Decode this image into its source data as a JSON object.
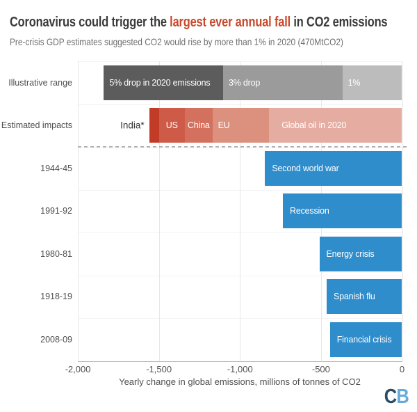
{
  "header": {
    "title_prefix": "Coronavirus could trigger the ",
    "title_highlight": "largest ever annual fall",
    "title_suffix": " in CO2 emissions",
    "subtitle": "Pre-crisis GDP estimates suggested CO2 would rise by more than 1% in 2020 (470MtCO2)"
  },
  "colors": {
    "title_dark": "#3b3b3b",
    "title_red": "#c8492b",
    "bar_blue": "#2f8dcc",
    "logo_c": "#2b4a63",
    "logo_b": "#66aadb"
  },
  "chart_data": {
    "type": "bar",
    "orientation": "horizontal",
    "title": "Coronavirus could trigger the largest ever annual fall in CO2 emissions",
    "subtitle": "Pre-crisis GDP estimates suggested CO2 would rise by more than 1% in 2020 (470MtCO2)",
    "xlabel": "Yearly change in global emissions, millions of tonnes of CO2",
    "xlim": [
      -2000,
      0
    ],
    "x_ticks": [
      -2000,
      -1500,
      -1000,
      -500,
      0
    ],
    "x_tick_labels": [
      "-2,000",
      "-1,500",
      "-1,000",
      "-500",
      "0"
    ],
    "grid": "vertical-light",
    "separator_after_rows": 2,
    "rows": [
      {
        "label": "Illustrative range",
        "type": "stacked",
        "segments": [
          {
            "label": "5% drop in 2020 emissions",
            "from": -1840,
            "to": -1104,
            "color": "#5c5c5c",
            "align": "left"
          },
          {
            "label": "3% drop",
            "from": -1104,
            "to": -368,
            "color": "#9b9b9b",
            "align": "left"
          },
          {
            "label": "1%",
            "from": -368,
            "to": 0,
            "color": "#bcbcbc",
            "align": "left"
          }
        ]
      },
      {
        "label": "Estimated impacts",
        "type": "stacked",
        "outside_label": "India*",
        "segments": [
          {
            "label": "",
            "name": "india",
            "from": -1560,
            "to": -1500,
            "color": "#c23b27"
          },
          {
            "label": "US",
            "from": -1500,
            "to": -1340,
            "color": "#cd5b48",
            "align": "center"
          },
          {
            "label": "China",
            "from": -1340,
            "to": -1170,
            "color": "#d4705e",
            "align": "center"
          },
          {
            "label": "EU",
            "from": -1170,
            "to": -820,
            "color": "#dc917f",
            "align": "left"
          },
          {
            "label": "Global oil in 2020",
            "from": -820,
            "to": 0,
            "color": "#e5aca1",
            "align": "left",
            "pad": 18
          }
        ]
      },
      {
        "label": "1944-45",
        "type": "single",
        "value": -845,
        "bar_label": "Second world war",
        "color": "#2f8dcc"
      },
      {
        "label": "1991-92",
        "type": "single",
        "value": -735,
        "bar_label": "Recession",
        "color": "#2f8dcc"
      },
      {
        "label": "1980-81",
        "type": "single",
        "value": -510,
        "bar_label": "Energy crisis",
        "color": "#2f8dcc"
      },
      {
        "label": "1918-19",
        "type": "single",
        "value": -465,
        "bar_label": "Spanish flu",
        "color": "#2f8dcc"
      },
      {
        "label": "2008-09",
        "type": "single",
        "value": -445,
        "bar_label": "Financial crisis",
        "color": "#2f8dcc"
      }
    ]
  },
  "footer": {
    "logo_c": "C",
    "logo_b": "B"
  }
}
